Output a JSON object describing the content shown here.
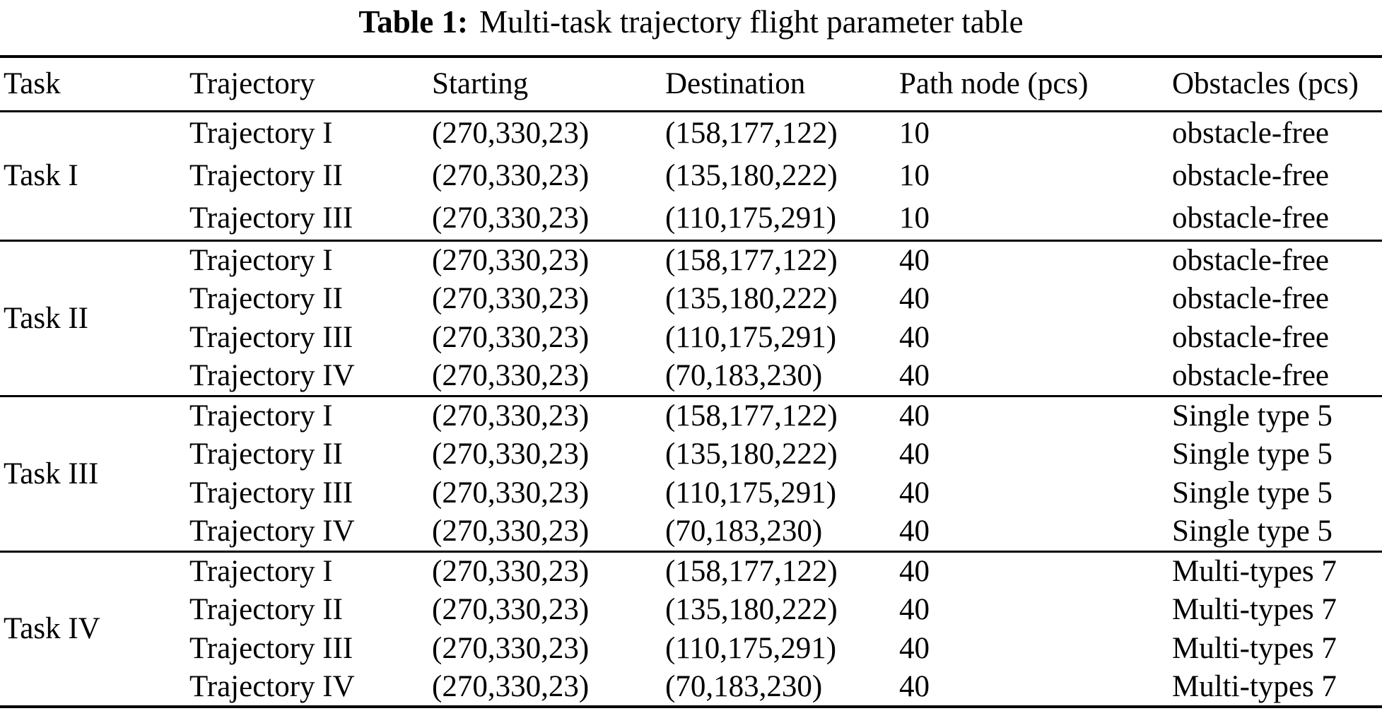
{
  "caption": {
    "label": "Table 1:",
    "text": "Multi-task trajectory flight parameter table"
  },
  "colors": {
    "text": "#000000",
    "background": "#ffffff",
    "rule": "#000000"
  },
  "table": {
    "columns": [
      "Task",
      "Trajectory",
      "Starting",
      "Destination",
      "Path node (pcs)",
      "Obstacles (pcs)"
    ],
    "groups": [
      {
        "task": "Task I",
        "rows": [
          {
            "trajectory": "Trajectory I",
            "starting": "(270,330,23)",
            "destination": "(158,177,122)",
            "path_node": "10",
            "obstacles": "obstacle-free"
          },
          {
            "trajectory": "Trajectory II",
            "starting": "(270,330,23)",
            "destination": "(135,180,222)",
            "path_node": "10",
            "obstacles": "obstacle-free"
          },
          {
            "trajectory": "Trajectory III",
            "starting": "(270,330,23)",
            "destination": "(110,175,291)",
            "path_node": "10",
            "obstacles": "obstacle-free"
          }
        ]
      },
      {
        "task": "Task II",
        "rows": [
          {
            "trajectory": "Trajectory I",
            "starting": "(270,330,23)",
            "destination": "(158,177,122)",
            "path_node": "40",
            "obstacles": "obstacle-free"
          },
          {
            "trajectory": "Trajectory II",
            "starting": "(270,330,23)",
            "destination": "(135,180,222)",
            "path_node": "40",
            "obstacles": "obstacle-free"
          },
          {
            "trajectory": "Trajectory III",
            "starting": "(270,330,23)",
            "destination": "(110,175,291)",
            "path_node": "40",
            "obstacles": "obstacle-free"
          },
          {
            "trajectory": "Trajectory IV",
            "starting": "(270,330,23)",
            "destination": "(70,183,230)",
            "path_node": "40",
            "obstacles": "obstacle-free"
          }
        ]
      },
      {
        "task": "Task III",
        "rows": [
          {
            "trajectory": "Trajectory I",
            "starting": "(270,330,23)",
            "destination": "(158,177,122)",
            "path_node": "40",
            "obstacles": "Single type 5"
          },
          {
            "trajectory": "Trajectory II",
            "starting": "(270,330,23)",
            "destination": "(135,180,222)",
            "path_node": "40",
            "obstacles": "Single type 5"
          },
          {
            "trajectory": "Trajectory III",
            "starting": "(270,330,23)",
            "destination": "(110,175,291)",
            "path_node": "40",
            "obstacles": "Single type 5"
          },
          {
            "trajectory": "Trajectory IV",
            "starting": "(270,330,23)",
            "destination": "(70,183,230)",
            "path_node": "40",
            "obstacles": "Single type 5"
          }
        ]
      },
      {
        "task": "Task IV",
        "rows": [
          {
            "trajectory": "Trajectory I",
            "starting": "(270,330,23)",
            "destination": "(158,177,122)",
            "path_node": "40",
            "obstacles": "Multi-types 7"
          },
          {
            "trajectory": "Trajectory II",
            "starting": "(270,330,23)",
            "destination": "(135,180,222)",
            "path_node": "40",
            "obstacles": "Multi-types 7"
          },
          {
            "trajectory": "Trajectory III",
            "starting": "(270,330,23)",
            "destination": "(110,175,291)",
            "path_node": "40",
            "obstacles": "Multi-types 7"
          },
          {
            "trajectory": "Trajectory IV",
            "starting": "(270,330,23)",
            "destination": "(70,183,230)",
            "path_node": "40",
            "obstacles": "Multi-types 7"
          }
        ]
      }
    ]
  }
}
